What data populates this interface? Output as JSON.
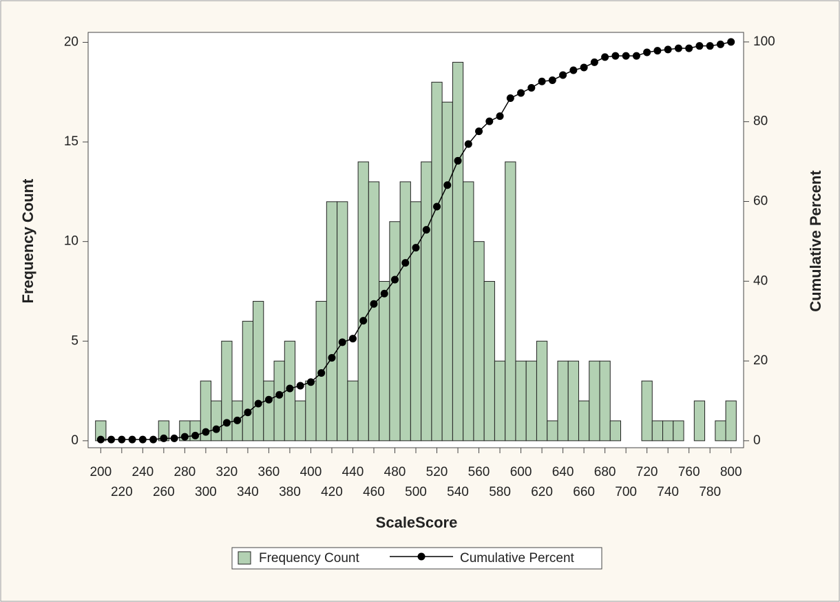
{
  "chart_data": {
    "type": "bar",
    "x_label": "ScaleScore",
    "y_label": "Frequency Count",
    "y2_label": "Cumulative Percent",
    "x": [
      200,
      210,
      220,
      230,
      240,
      250,
      260,
      270,
      280,
      290,
      300,
      310,
      320,
      330,
      340,
      350,
      360,
      370,
      380,
      390,
      400,
      410,
      420,
      430,
      440,
      450,
      460,
      470,
      480,
      490,
      500,
      510,
      520,
      530,
      540,
      550,
      560,
      570,
      580,
      590,
      600,
      610,
      620,
      630,
      640,
      650,
      660,
      670,
      680,
      690,
      700,
      710,
      720,
      730,
      740,
      750,
      760,
      770,
      780,
      790,
      800
    ],
    "bar_width": 10,
    "series": [
      {
        "name": "Frequency Count",
        "type": "bar",
        "color": "#b3d1b3",
        "values": [
          1,
          0,
          0,
          0,
          0,
          0,
          1,
          0,
          1,
          1,
          3,
          2,
          5,
          2,
          6,
          7,
          3,
          4,
          5,
          2,
          3,
          7,
          12,
          12,
          3,
          14,
          13,
          8,
          11,
          13,
          12,
          14,
          18,
          17,
          19,
          13,
          10,
          8,
          4,
          14,
          4,
          4,
          5,
          1,
          4,
          4,
          2,
          4,
          4,
          1,
          0,
          0,
          3,
          1,
          1,
          1,
          0,
          2,
          0,
          1,
          2
        ]
      },
      {
        "name": "Cumulative Percent",
        "type": "line",
        "axis": "y2",
        "color": "#000000",
        "values": [
          0.3,
          0.3,
          0.3,
          0.3,
          0.3,
          0.3,
          0.6,
          0.6,
          1.0,
          1.3,
          2.2,
          2.9,
          4.5,
          5.1,
          7.1,
          9.3,
          10.3,
          11.5,
          13.1,
          13.8,
          14.7,
          17.0,
          20.8,
          24.7,
          25.6,
          30.1,
          34.3,
          36.9,
          40.4,
          44.6,
          48.4,
          52.9,
          58.7,
          64.1,
          70.2,
          74.4,
          77.6,
          80.1,
          81.4,
          85.9,
          87.2,
          88.5,
          90.1,
          90.4,
          91.7,
          92.9,
          93.6,
          94.9,
          96.2,
          96.5,
          96.5,
          96.5,
          97.4,
          97.8,
          98.1,
          98.4,
          98.4,
          99.0,
          99.0,
          99.4,
          100
        ]
      }
    ],
    "xlim": [
      188,
      812
    ],
    "xticks": [
      200,
      220,
      240,
      260,
      280,
      300,
      320,
      340,
      360,
      380,
      400,
      420,
      440,
      460,
      480,
      500,
      520,
      540,
      560,
      580,
      600,
      620,
      640,
      660,
      680,
      700,
      720,
      740,
      760,
      780,
      800
    ],
    "ylim": [
      -0.35,
      20.5
    ],
    "yticks": [
      0,
      5,
      10,
      15,
      20
    ],
    "y2lim": [
      -1.75,
      102.4
    ],
    "y2ticks": [
      0,
      20,
      40,
      60,
      80,
      100
    ],
    "legend": "bottom"
  }
}
